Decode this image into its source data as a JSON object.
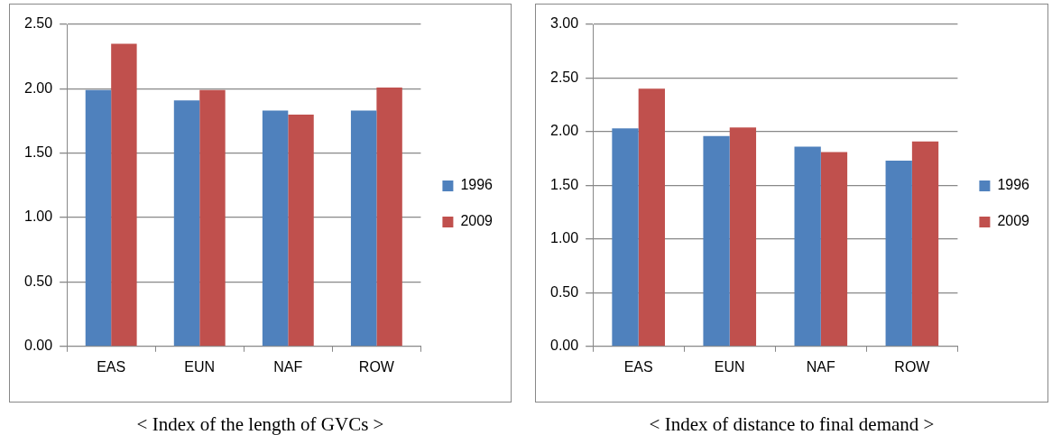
{
  "chart_data": [
    {
      "type": "bar",
      "title": "< Index of the length of GVCs >",
      "categories": [
        "EAS",
        "EUN",
        "NAF",
        "ROW"
      ],
      "series": [
        {
          "name": "1996",
          "color": "#4f81bd",
          "values": [
            1.99,
            1.91,
            1.83,
            1.83
          ]
        },
        {
          "name": "2009",
          "color": "#c0504d",
          "values": [
            2.35,
            1.99,
            1.8,
            2.01
          ]
        }
      ],
      "ylim": [
        0,
        2.5
      ],
      "yticks": [
        {
          "value": 0,
          "label": "0.00"
        },
        {
          "value": 0.5,
          "label": "0.50"
        },
        {
          "value": 1,
          "label": "1.00"
        },
        {
          "value": 1.5,
          "label": "1.50"
        },
        {
          "value": 2,
          "label": "2.00"
        },
        {
          "value": 2.5,
          "label": "2.50"
        }
      ],
      "grid": "y",
      "legend": "right"
    },
    {
      "type": "bar",
      "title": "< Index of distance to final demand >",
      "categories": [
        "EAS",
        "EUN",
        "NAF",
        "ROW"
      ],
      "series": [
        {
          "name": "1996",
          "color": "#4f81bd",
          "values": [
            2.03,
            1.96,
            1.86,
            1.73
          ]
        },
        {
          "name": "2009",
          "color": "#c0504d",
          "values": [
            2.4,
            2.04,
            1.81,
            1.91
          ]
        }
      ],
      "ylim": [
        0,
        3
      ],
      "yticks": [
        {
          "value": 0,
          "label": "0.00"
        },
        {
          "value": 0.5,
          "label": "0.50"
        },
        {
          "value": 1,
          "label": "1.00"
        },
        {
          "value": 1.5,
          "label": "1.50"
        },
        {
          "value": 2,
          "label": "2.00"
        },
        {
          "value": 2.5,
          "label": "2.50"
        },
        {
          "value": 3,
          "label": "3.00"
        }
      ],
      "grid": "y",
      "legend": "right"
    }
  ]
}
